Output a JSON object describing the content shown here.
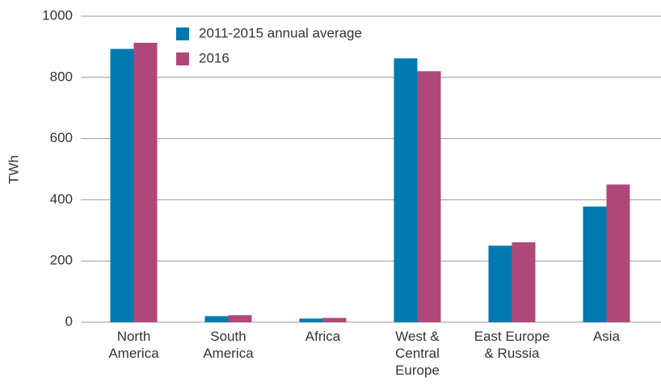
{
  "chart_data": {
    "type": "bar",
    "y_label": "TWh",
    "categories": [
      "North\nAmerica",
      "South\nAmerica",
      "Africa",
      "West &\nCentral\nEurope",
      "East Europe\n& Russia",
      "Asia"
    ],
    "series": [
      {
        "name": "2011-2015 annual average",
        "color": "#0079b0",
        "values": [
          893,
          20,
          12,
          862,
          250,
          378
        ]
      },
      {
        "name": "2016",
        "color": "#b0477a",
        "values": [
          913,
          23,
          14,
          820,
          261,
          450
        ]
      }
    ],
    "ylim": [
      0,
      1000
    ],
    "yticks": [
      0,
      200,
      400,
      600,
      800,
      1000
    ],
    "grid": true
  }
}
